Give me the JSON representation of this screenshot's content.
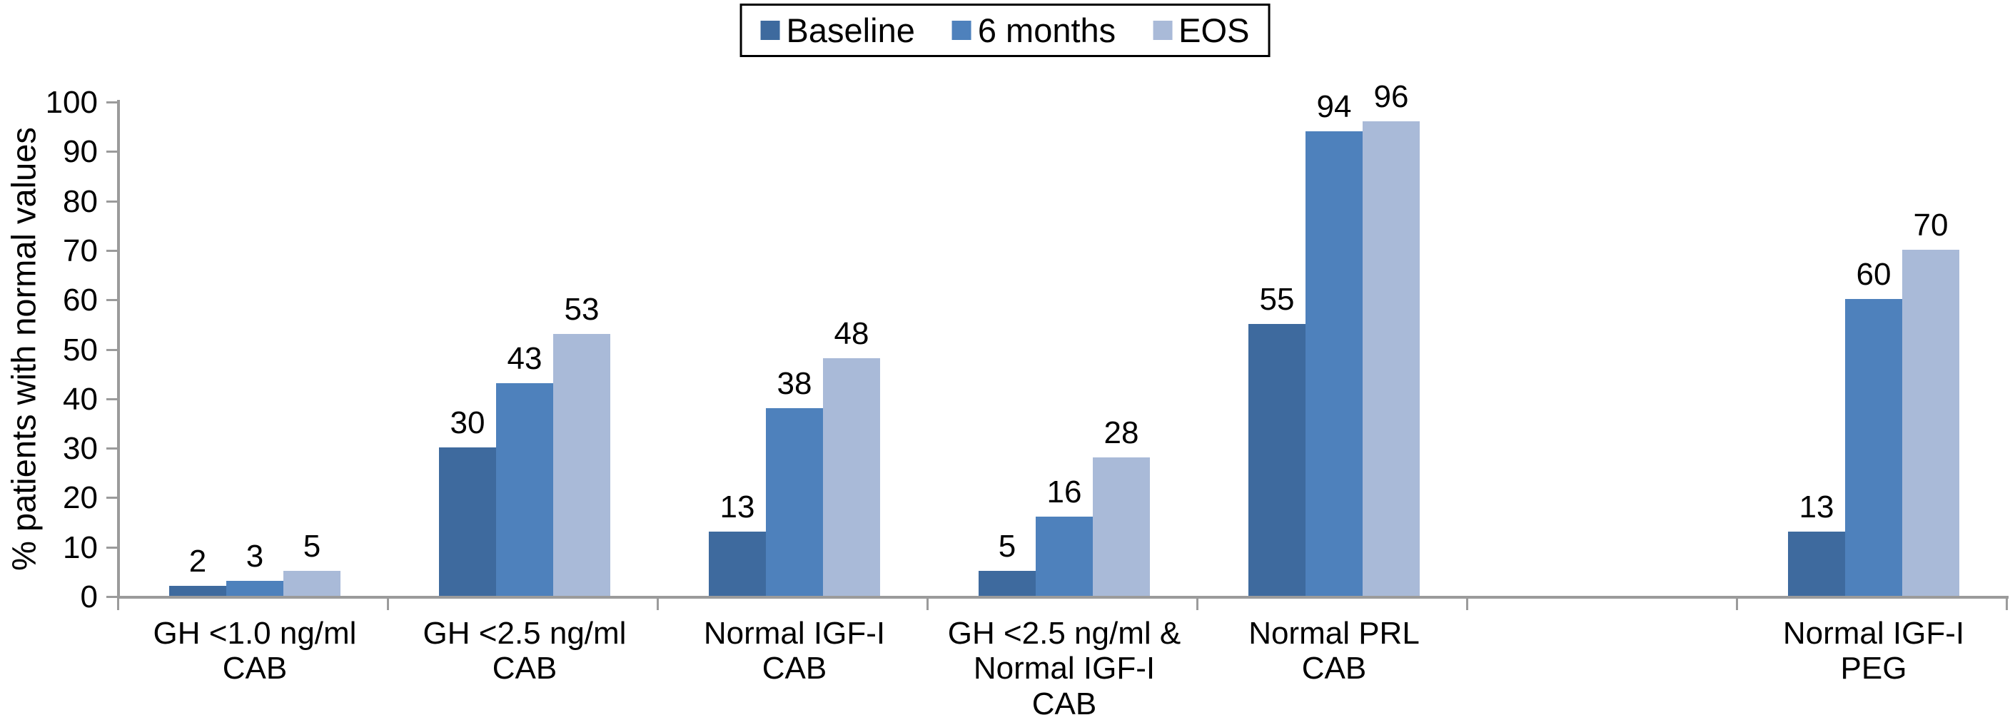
{
  "colors": {
    "axis": "#9B9B9B",
    "text": "#000000",
    "background": "#FFFFFF",
    "legend_border": "#000000"
  },
  "legend": {
    "items": [
      {
        "label": "Baseline",
        "color": "#3E6A9E"
      },
      {
        "label": "6 months",
        "color": "#4E81BC"
      },
      {
        "label": "EOS",
        "color": "#A9BAD8"
      }
    ]
  },
  "chart_data": {
    "type": "bar",
    "title": "",
    "xlabel": "",
    "ylabel": "% patients with normal values",
    "ylim": [
      0,
      100
    ],
    "yticks": [
      0,
      10,
      20,
      30,
      40,
      50,
      60,
      70,
      80,
      90,
      100
    ],
    "grid": false,
    "legend_position": "top-center",
    "categories": [
      "GH <1.0 ng/ml\nCAB",
      "GH <2.5 ng/ml\nCAB",
      "Normal IGF-I\nCAB",
      "GH <2.5 ng/ml &\nNormal IGF-I\nCAB",
      "Normal PRL\nCAB",
      "",
      "Normal IGF-I\nPEG"
    ],
    "series": [
      {
        "name": "Baseline",
        "color": "#3E6A9E",
        "values": [
          2,
          30,
          13,
          5,
          55,
          null,
          13
        ]
      },
      {
        "name": "6 months",
        "color": "#4E81BC",
        "values": [
          3,
          43,
          38,
          16,
          94,
          null,
          60
        ]
      },
      {
        "name": "EOS",
        "color": "#A9BAD8",
        "values": [
          5,
          53,
          48,
          28,
          96,
          null,
          70
        ]
      }
    ],
    "data_labels_visible": true
  }
}
